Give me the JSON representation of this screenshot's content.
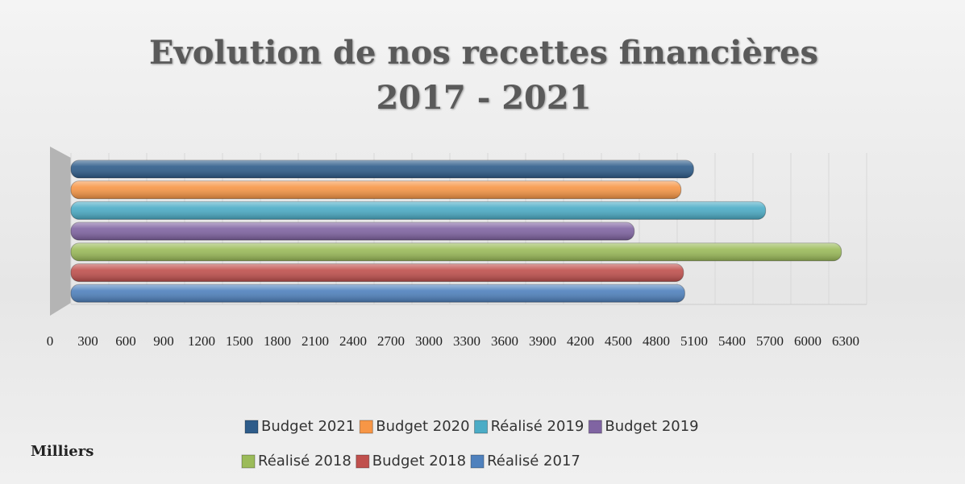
{
  "chart_data": {
    "type": "bar",
    "orientation": "horizontal",
    "title": "Evolution de nos recettes financières 2017 - 2021",
    "axis_label": "Milliers",
    "series": [
      {
        "name": "Budget 2021",
        "color": "#2e5c8a",
        "values": [
          4930
        ]
      },
      {
        "name": "Budget 2020",
        "color": "#f79646",
        "values": [
          4830
        ]
      },
      {
        "name": "Réalisé 2019",
        "color": "#4bacc6",
        "values": [
          5500
        ]
      },
      {
        "name": "Budget 2019",
        "color": "#8064a2",
        "values": [
          4460
        ]
      },
      {
        "name": "Réalisé 2018",
        "color": "#9bbb59",
        "values": [
          6100
        ]
      },
      {
        "name": "Budget 2018",
        "color": "#c0504d",
        "values": [
          4850
        ]
      },
      {
        "name": "Réalisé 2017",
        "color": "#4f81bd",
        "values": [
          4860
        ]
      }
    ],
    "xlim": [
      0,
      6300
    ],
    "xticks": [
      0,
      300,
      600,
      900,
      1200,
      1500,
      1800,
      2100,
      2400,
      2700,
      3000,
      3300,
      3600,
      3900,
      4200,
      4500,
      4800,
      5100,
      5400,
      5700,
      6000,
      6300
    ],
    "grid": true,
    "legend": "bottom"
  }
}
